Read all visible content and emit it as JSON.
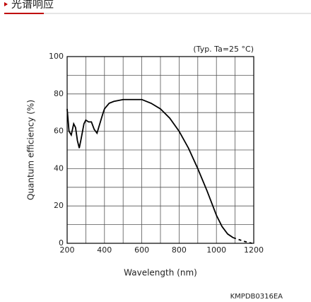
{
  "header": {
    "title": "光谱响应"
  },
  "chart_data": {
    "type": "line",
    "annotation": "(Typ. Ta=25 °C)",
    "footnote": "KMPDB0316EA",
    "xlabel": "Wavelength (nm)",
    "ylabel": "Quantum efficiency (%)",
    "xlim": [
      200,
      1200
    ],
    "ylim": [
      0,
      100
    ],
    "xticks": [
      200,
      400,
      600,
      800,
      1000,
      1200
    ],
    "yticks": [
      0,
      20,
      40,
      60,
      80,
      100
    ],
    "x_minor_grid": [
      300,
      500,
      700,
      900,
      1100
    ],
    "y_minor_grid": [
      10,
      30,
      50,
      70,
      90
    ],
    "grid": true,
    "series": [
      {
        "color": "#000000",
        "dashed": false,
        "x": [
          200,
          210,
          222,
          235,
          245,
          255,
          265,
          275,
          290,
          300,
          315,
          330,
          345,
          360,
          375,
          390,
          400,
          425,
          450,
          500,
          550,
          600,
          650,
          700,
          750,
          800,
          850,
          900,
          950,
          1000,
          1030,
          1060,
          1090
        ],
        "values": [
          72,
          60,
          58,
          64,
          62,
          55,
          51,
          56,
          64,
          66,
          65,
          65,
          61,
          59,
          64,
          69,
          72,
          75,
          76,
          77,
          77,
          77,
          75,
          72,
          67,
          60,
          51,
          40,
          28,
          15,
          9,
          5,
          3
        ]
      },
      {
        "color": "#000000",
        "dashed": true,
        "x": [
          1090,
          1120,
          1150,
          1190
        ],
        "values": [
          3,
          2,
          1,
          0
        ]
      }
    ]
  }
}
